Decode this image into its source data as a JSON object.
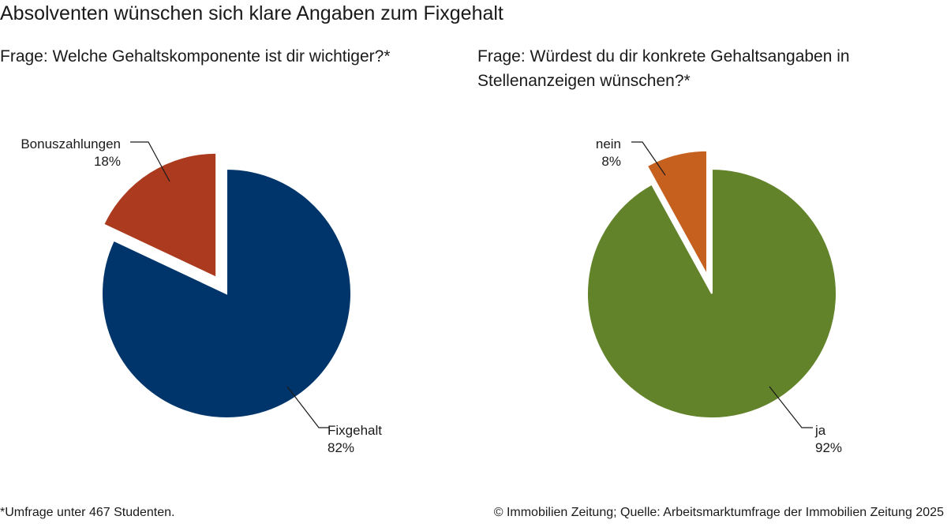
{
  "title": "Absolventen wünschen sich klare Angaben zum Fixgehalt",
  "footnote": "*Umfrage unter 467 Studenten.",
  "source": "© Immobilien Zeitung; Quelle: Arbeitsmarktumfrage der Immobilien Zeitung 2025",
  "chart_data": [
    {
      "type": "pie",
      "title": "Frage: Welche Gehaltskomponente ist dir wichtiger?*",
      "slices": [
        {
          "label": "Fixgehalt",
          "value_label": "82%",
          "value": 82,
          "color": "#00356b",
          "exploded": false
        },
        {
          "label": "Bonuszahlungen",
          "value_label": "18%",
          "value": 18,
          "color": "#ab3a1e",
          "exploded": true
        }
      ]
    },
    {
      "type": "pie",
      "title": "Frage: Würdest du dir konkrete Gehaltsangaben in Stellenanzeigen wünschen?*",
      "slices": [
        {
          "label": "ja",
          "value_label": "92%",
          "value": 92,
          "color": "#62832a",
          "exploded": false
        },
        {
          "label": "nein",
          "value_label": "8%",
          "value": 8,
          "color": "#c6601f",
          "exploded": true
        }
      ]
    }
  ]
}
